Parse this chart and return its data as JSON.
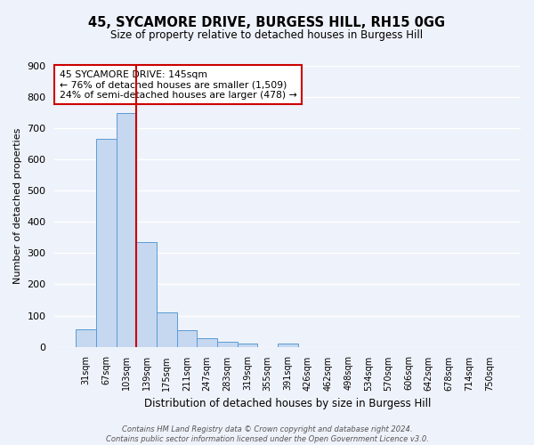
{
  "title": "45, SYCAMORE DRIVE, BURGESS HILL, RH15 0GG",
  "subtitle": "Size of property relative to detached houses in Burgess Hill",
  "xlabel": "Distribution of detached houses by size in Burgess Hill",
  "ylabel": "Number of detached properties",
  "bin_labels": [
    "31sqm",
    "67sqm",
    "103sqm",
    "139sqm",
    "175sqm",
    "211sqm",
    "247sqm",
    "283sqm",
    "319sqm",
    "355sqm",
    "391sqm",
    "426sqm",
    "462sqm",
    "498sqm",
    "534sqm",
    "570sqm",
    "606sqm",
    "642sqm",
    "678sqm",
    "714sqm",
    "750sqm"
  ],
  "bar_values": [
    55,
    665,
    750,
    335,
    110,
    53,
    27,
    15,
    10,
    0,
    10,
    0,
    0,
    0,
    0,
    0,
    0,
    0,
    0,
    0,
    0
  ],
  "bar_color": "#c5d8f0",
  "bar_edge_color": "#5b9bd5",
  "vline_color": "#cc0000",
  "vline_x_index": 2.5,
  "ylim": [
    0,
    900
  ],
  "yticks": [
    0,
    100,
    200,
    300,
    400,
    500,
    600,
    700,
    800,
    900
  ],
  "annotation_title": "45 SYCAMORE DRIVE: 145sqm",
  "annotation_line1": "← 76% of detached houses are smaller (1,509)",
  "annotation_line2": "24% of semi-detached houses are larger (478) →",
  "annotation_box_color": "#ffffff",
  "annotation_box_edge": "#cc0000",
  "footer1": "Contains HM Land Registry data © Crown copyright and database right 2024.",
  "footer2": "Contains public sector information licensed under the Open Government Licence v3.0.",
  "bg_color": "#eef2fa",
  "grid_color": "#ffffff"
}
